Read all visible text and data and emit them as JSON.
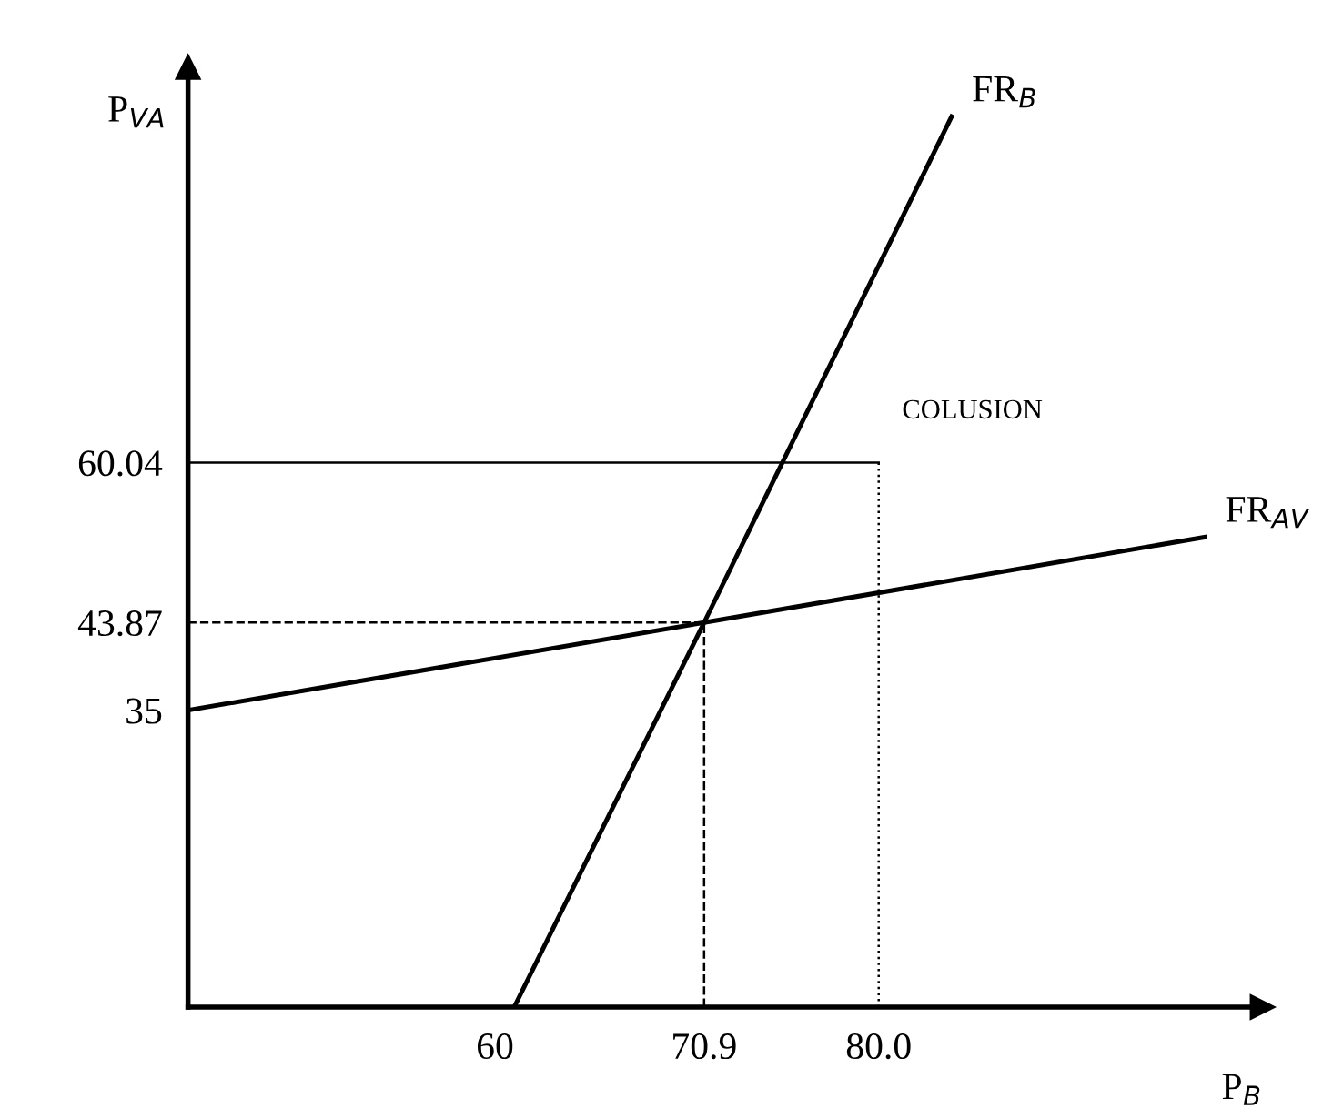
{
  "chart_data": {
    "type": "line",
    "xlabel": "P$_{B}$",
    "ylabel": "P$_{VA}$",
    "xlim": [
      44,
      100
    ],
    "ylim": [
      5,
      100
    ],
    "xticks": [
      60,
      70.9,
      {
        "value": 80,
        "label": "80.0"
      }
    ],
    "yticks": [
      35,
      43.87,
      60.04
    ],
    "series": [
      {
        "name": "FR$_{B}$",
        "color": "#000000",
        "line_style": "solid",
        "x": [
          61,
          70.9,
          83.8
        ],
        "values": [
          5,
          43.87,
          95
        ]
      },
      {
        "name": "FR$_{AV}$",
        "color": "#000000",
        "line_style": "solid",
        "x": [
          44,
          70.9,
          97
        ],
        "values": [
          35,
          43.87,
          52.5
        ]
      },
      {
        "color": "#000000",
        "line_style": "dashed",
        "x": [
          44,
          70.9,
          70.9
        ],
        "values": [
          43.87,
          43.87,
          5
        ]
      },
      {
        "color": "#000000",
        "line_style": "solid",
        "x": [
          44,
          80
        ],
        "values": [
          60.04,
          60.04
        ]
      },
      {
        "color": "#000000",
        "line_style": "dotted",
        "x": [
          80,
          80
        ],
        "values": [
          60.04,
          5
        ]
      }
    ],
    "annotations": [
      "COLUSION"
    ]
  }
}
